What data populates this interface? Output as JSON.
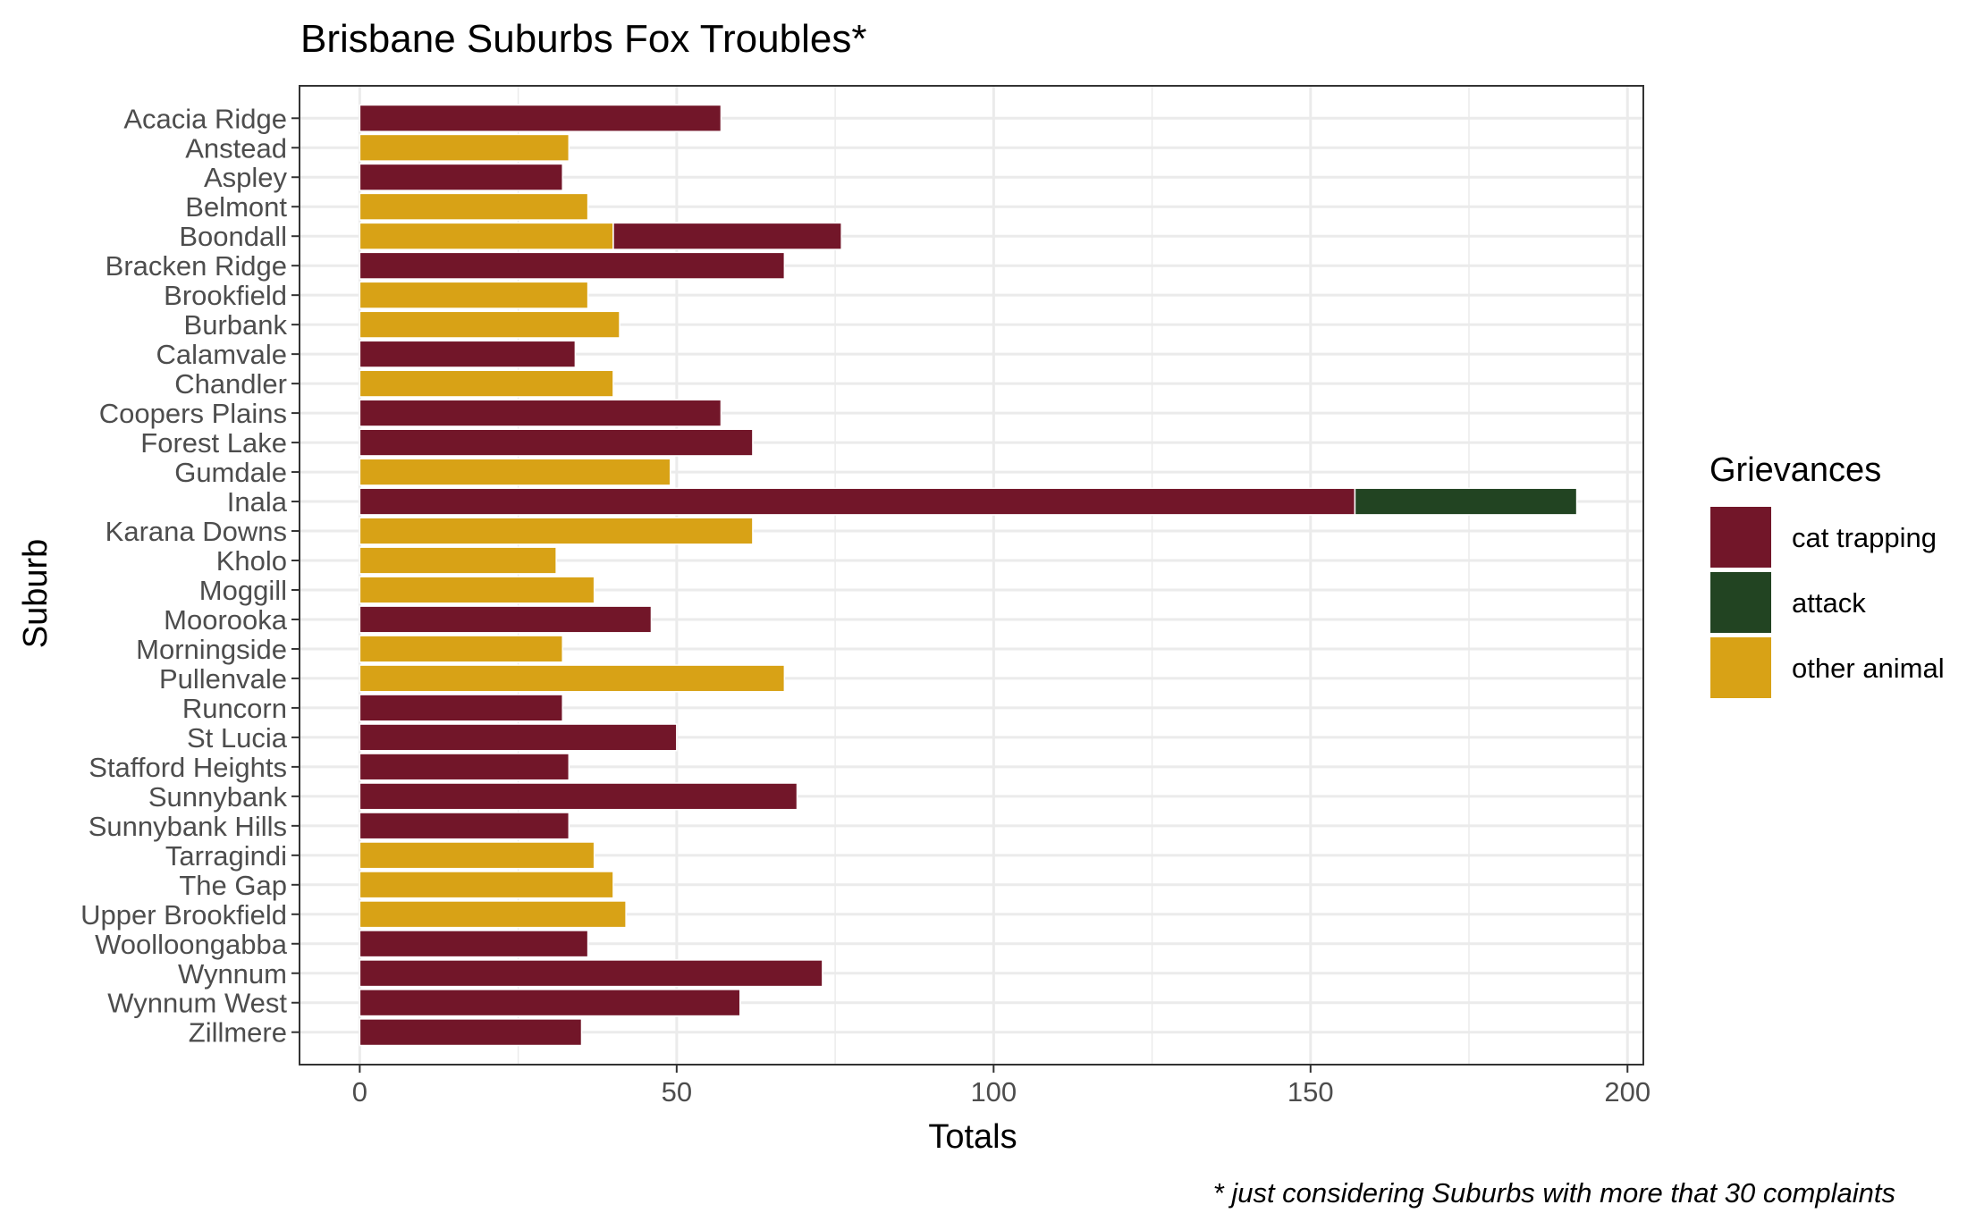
{
  "chart_data": {
    "type": "bar",
    "orientation": "horizontal",
    "stacked": true,
    "title": "Brisbane Suburbs Fox Troubles*",
    "caption": "* just considering Suburbs with more that 30 complaints",
    "xlabel": "Totals",
    "ylabel": "Suburb",
    "xlim": [
      -9.5,
      202.5
    ],
    "xticks": [
      0,
      50,
      100,
      150,
      200
    ],
    "x_minor_ticks": [
      25,
      75,
      125,
      175
    ],
    "grid": true,
    "legend": {
      "title": "Grievances",
      "position": "right",
      "entries": [
        "cat trapping",
        "attack",
        "other animal"
      ]
    },
    "colors": {
      "cat trapping": "#721629",
      "attack": "#224422",
      "other animal": "#d8a216",
      "grid": "#ebebeb",
      "panel_border": "#333333",
      "axis_text": "#4d4d4d",
      "title_text": "#000000"
    },
    "categories": [
      "Acacia Ridge",
      "Anstead",
      "Aspley",
      "Belmont",
      "Boondall",
      "Bracken Ridge",
      "Brookfield",
      "Burbank",
      "Calamvale",
      "Chandler",
      "Coopers Plains",
      "Forest Lake",
      "Gumdale",
      "Inala",
      "Karana Downs",
      "Kholo",
      "Moggill",
      "Moorooka",
      "Morningside",
      "Pullenvale",
      "Runcorn",
      "St Lucia",
      "Stafford Heights",
      "Sunnybank",
      "Sunnybank Hills",
      "Tarragindi",
      "The Gap",
      "Upper Brookfield",
      "Woolloongabba",
      "Wynnum",
      "Wynnum West",
      "Zillmere"
    ],
    "series": [
      {
        "name": "other animal",
        "values": [
          0,
          33,
          0,
          36,
          40,
          0,
          36,
          41,
          0,
          40,
          0,
          0,
          49,
          0,
          62,
          31,
          37,
          0,
          32,
          67,
          0,
          0,
          0,
          0,
          0,
          37,
          40,
          42,
          0,
          0,
          0,
          0
        ]
      },
      {
        "name": "cat trapping",
        "values": [
          57,
          0,
          32,
          0,
          36,
          67,
          0,
          0,
          34,
          0,
          57,
          62,
          0,
          157,
          0,
          0,
          0,
          46,
          0,
          0,
          32,
          50,
          33,
          69,
          33,
          0,
          0,
          0,
          36,
          73,
          60,
          35
        ]
      },
      {
        "name": "attack",
        "values": [
          0,
          0,
          0,
          0,
          0,
          0,
          0,
          0,
          0,
          0,
          0,
          0,
          0,
          35,
          0,
          0,
          0,
          0,
          0,
          0,
          0,
          0,
          0,
          0,
          0,
          0,
          0,
          0,
          0,
          0,
          0,
          0
        ]
      }
    ]
  }
}
